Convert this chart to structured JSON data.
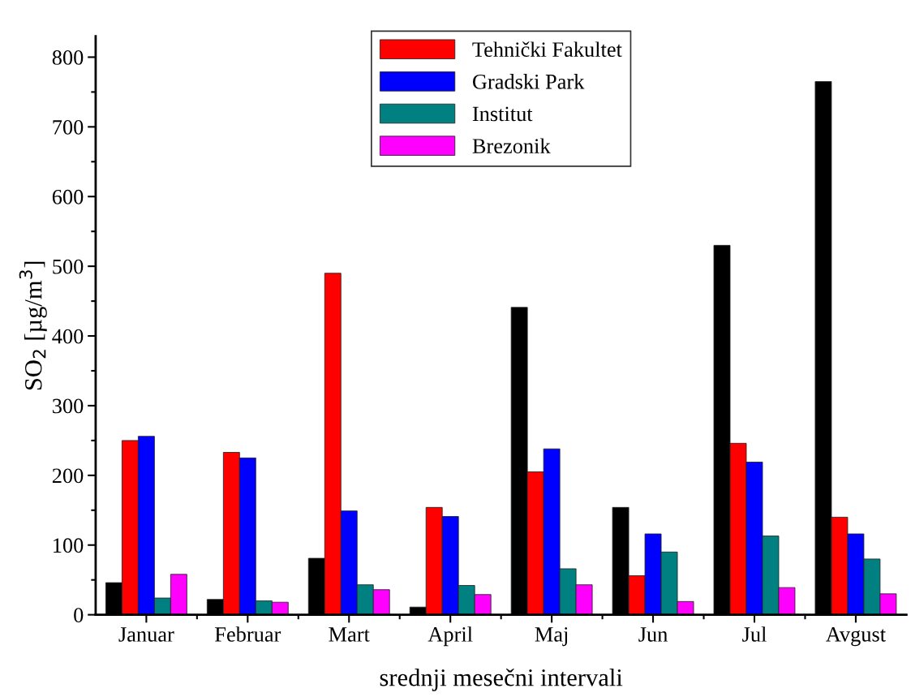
{
  "chart_data": {
    "type": "bar",
    "xlabel": "srednji mesečni intervali",
    "ylabel": "SO$_{2}$ [µg/m$^{3}$]",
    "categories": [
      "Januar",
      "Februar",
      "Mart",
      "April",
      "Maj",
      "Jun",
      "Jul",
      "Avgust"
    ],
    "series": [
      {
        "color": "#000000",
        "values": [
          46,
          22,
          81,
          11,
          441,
          154,
          530,
          765
        ]
      },
      {
        "name": "Tehnički Fakultet",
        "color": "#ff0000",
        "values": [
          250,
          233,
          490,
          154,
          205,
          56,
          246,
          140
        ]
      },
      {
        "name": "Gradski Park",
        "color": "#0000ff",
        "values": [
          256,
          225,
          149,
          141,
          238,
          116,
          219,
          116
        ]
      },
      {
        "name": "Institut",
        "color": "#008080",
        "values": [
          24,
          20,
          43,
          42,
          66,
          90,
          113,
          80
        ]
      },
      {
        "name": "Brezonik",
        "color": "#ff00ff",
        "values": [
          58,
          18,
          36,
          29,
          43,
          19,
          39,
          30
        ]
      }
    ],
    "ylim": [
      0,
      830
    ],
    "yticks": [
      0,
      100,
      200,
      300,
      400,
      500,
      600,
      700,
      800
    ],
    "grid": false,
    "legend": "top"
  }
}
